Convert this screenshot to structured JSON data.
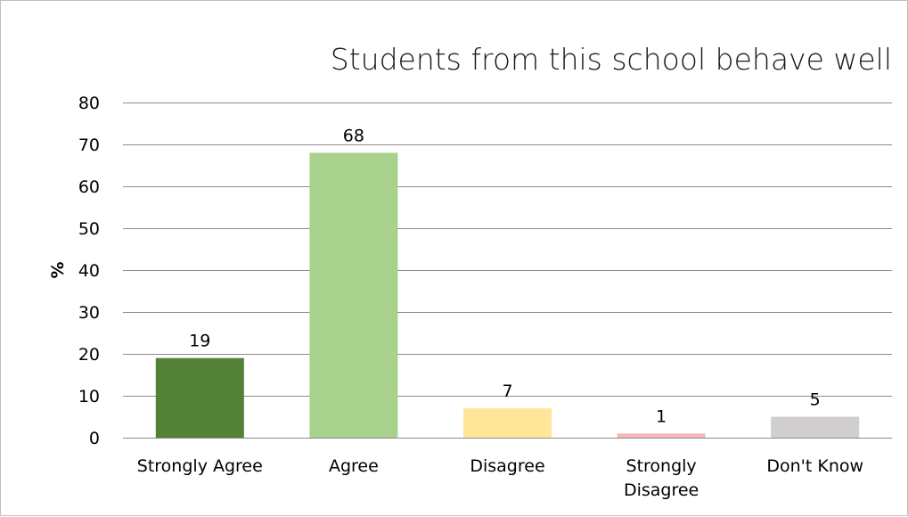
{
  "chart_data": {
    "type": "bar",
    "title": "Students from this school behave well",
    "ylabel": "%",
    "xlabel": "",
    "categories": [
      "Strongly Agree",
      "Agree",
      "Disagree",
      "Strongly Disagree",
      "Don't Know"
    ],
    "values": [
      19,
      68,
      7,
      1,
      5
    ],
    "data_labels": [
      "19",
      "68",
      "7",
      "1",
      "5"
    ],
    "colors": [
      "#538135",
      "#a9d18e",
      "#ffe699",
      "#f4b6b6",
      "#d0cece"
    ],
    "ylim": [
      0,
      80
    ],
    "yticks": [
      0,
      10,
      20,
      30,
      40,
      50,
      60,
      70,
      80
    ],
    "grid": true,
    "legend": "none"
  }
}
